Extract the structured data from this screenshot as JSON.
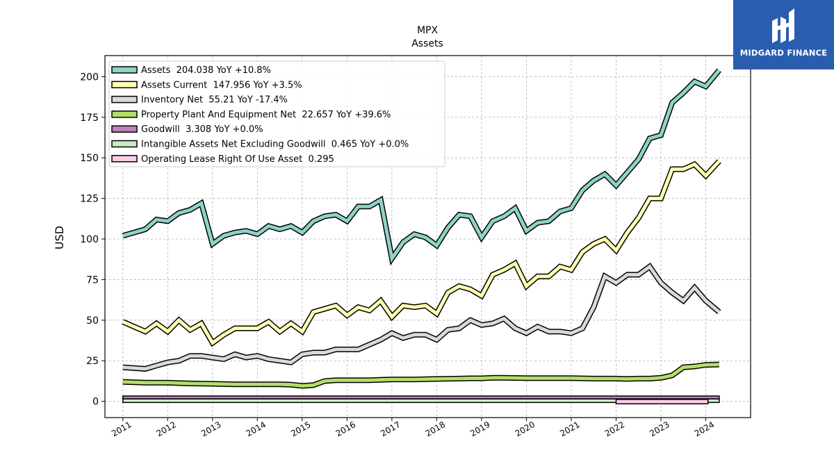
{
  "logo": {
    "text": "MIDGARD FINANCE",
    "background": "#2a5db0"
  },
  "chart_data": {
    "type": "line",
    "title": "MPX",
    "subtitle": "Assets",
    "ylabel": "USD",
    "xlabel": "",
    "xlim": [
      2010.6,
      2025.0
    ],
    "ylim": [
      -10,
      213
    ],
    "yticks": [
      0,
      25,
      50,
      75,
      100,
      125,
      150,
      175,
      200
    ],
    "xticks": [
      "2011",
      "2012",
      "2013",
      "2014",
      "2015",
      "2016",
      "2017",
      "2018",
      "2019",
      "2020",
      "2021",
      "2022",
      "2023",
      "2024"
    ],
    "grid": true,
    "legend_position": "top-left",
    "series": [
      {
        "name": "Assets  204.038 YoY +10.8%",
        "color": "#8dd3c7",
        "points": [
          [
            2011.0,
            102
          ],
          [
            2011.5,
            106
          ],
          [
            2011.75,
            112
          ],
          [
            2012.0,
            111
          ],
          [
            2012.25,
            116
          ],
          [
            2012.5,
            118
          ],
          [
            2012.75,
            122
          ],
          [
            2013.0,
            97
          ],
          [
            2013.25,
            102
          ],
          [
            2013.5,
            104
          ],
          [
            2013.75,
            105
          ],
          [
            2014.0,
            103
          ],
          [
            2014.25,
            108
          ],
          [
            2014.5,
            106
          ],
          [
            2014.75,
            108
          ],
          [
            2015.0,
            104
          ],
          [
            2015.25,
            111
          ],
          [
            2015.5,
            114
          ],
          [
            2015.75,
            115
          ],
          [
            2016.0,
            111
          ],
          [
            2016.25,
            120
          ],
          [
            2016.5,
            120
          ],
          [
            2016.75,
            124
          ],
          [
            2017.0,
            88
          ],
          [
            2017.25,
            98
          ],
          [
            2017.5,
            103
          ],
          [
            2017.75,
            101
          ],
          [
            2018.0,
            96
          ],
          [
            2018.25,
            107
          ],
          [
            2018.5,
            115
          ],
          [
            2018.75,
            114
          ],
          [
            2019.0,
            101
          ],
          [
            2019.25,
            111
          ],
          [
            2019.5,
            114
          ],
          [
            2019.75,
            119
          ],
          [
            2020.0,
            105
          ],
          [
            2020.25,
            110
          ],
          [
            2020.5,
            111
          ],
          [
            2020.75,
            117
          ],
          [
            2021.0,
            119
          ],
          [
            2021.25,
            130
          ],
          [
            2021.5,
            136
          ],
          [
            2021.75,
            140
          ],
          [
            2022.0,
            133
          ],
          [
            2022.25,
            141
          ],
          [
            2022.5,
            149
          ],
          [
            2022.75,
            162
          ],
          [
            2023.0,
            164
          ],
          [
            2023.25,
            184
          ],
          [
            2023.5,
            190
          ],
          [
            2023.75,
            197
          ],
          [
            2024.0,
            194
          ],
          [
            2024.3,
            204
          ]
        ]
      },
      {
        "name": "Assets Current  147.956 YoY +3.5%",
        "color": "#ffffb3",
        "points": [
          [
            2011.0,
            49
          ],
          [
            2011.5,
            43
          ],
          [
            2011.75,
            48
          ],
          [
            2012.0,
            43
          ],
          [
            2012.25,
            50
          ],
          [
            2012.5,
            44
          ],
          [
            2012.75,
            48
          ],
          [
            2013.0,
            36
          ],
          [
            2013.25,
            41
          ],
          [
            2013.5,
            45
          ],
          [
            2013.75,
            45
          ],
          [
            2014.0,
            45
          ],
          [
            2014.25,
            49
          ],
          [
            2014.5,
            43
          ],
          [
            2014.75,
            48
          ],
          [
            2015.0,
            43
          ],
          [
            2015.25,
            55
          ],
          [
            2015.5,
            57
          ],
          [
            2015.75,
            59
          ],
          [
            2016.0,
            53
          ],
          [
            2016.25,
            58
          ],
          [
            2016.5,
            56
          ],
          [
            2016.75,
            62
          ],
          [
            2017.0,
            52
          ],
          [
            2017.25,
            59
          ],
          [
            2017.5,
            58
          ],
          [
            2017.75,
            59
          ],
          [
            2018.0,
            54
          ],
          [
            2018.25,
            67
          ],
          [
            2018.5,
            71
          ],
          [
            2018.75,
            69
          ],
          [
            2019.0,
            65
          ],
          [
            2019.25,
            78
          ],
          [
            2019.5,
            81
          ],
          [
            2019.75,
            85
          ],
          [
            2020.0,
            71
          ],
          [
            2020.25,
            77
          ],
          [
            2020.5,
            77
          ],
          [
            2020.75,
            83
          ],
          [
            2021.0,
            81
          ],
          [
            2021.25,
            92
          ],
          [
            2021.5,
            97
          ],
          [
            2021.75,
            100
          ],
          [
            2022.0,
            93
          ],
          [
            2022.25,
            104
          ],
          [
            2022.5,
            113
          ],
          [
            2022.75,
            125
          ],
          [
            2023.0,
            125
          ],
          [
            2023.25,
            143
          ],
          [
            2023.5,
            143
          ],
          [
            2023.75,
            146
          ],
          [
            2024.0,
            139
          ],
          [
            2024.3,
            148
          ]
        ]
      },
      {
        "name": "Inventory Net  55.21 YoY -17.4%",
        "color": "#d9d9d9",
        "points": [
          [
            2011.0,
            21
          ],
          [
            2011.5,
            20
          ],
          [
            2011.75,
            22
          ],
          [
            2012.0,
            24
          ],
          [
            2012.25,
            25
          ],
          [
            2012.5,
            28
          ],
          [
            2012.75,
            28
          ],
          [
            2013.0,
            27
          ],
          [
            2013.25,
            26
          ],
          [
            2013.5,
            29
          ],
          [
            2013.75,
            27
          ],
          [
            2014.0,
            28
          ],
          [
            2014.25,
            26
          ],
          [
            2014.5,
            25
          ],
          [
            2014.75,
            24
          ],
          [
            2015.0,
            29
          ],
          [
            2015.25,
            30
          ],
          [
            2015.5,
            30
          ],
          [
            2015.75,
            32
          ],
          [
            2016.0,
            32
          ],
          [
            2016.25,
            32
          ],
          [
            2016.5,
            35
          ],
          [
            2016.75,
            38
          ],
          [
            2017.0,
            42
          ],
          [
            2017.25,
            39
          ],
          [
            2017.5,
            41
          ],
          [
            2017.75,
            41
          ],
          [
            2018.0,
            38
          ],
          [
            2018.25,
            44
          ],
          [
            2018.5,
            45
          ],
          [
            2018.75,
            50
          ],
          [
            2019.0,
            47
          ],
          [
            2019.25,
            48
          ],
          [
            2019.5,
            51
          ],
          [
            2019.75,
            45
          ],
          [
            2020.0,
            42
          ],
          [
            2020.25,
            46
          ],
          [
            2020.5,
            43
          ],
          [
            2020.75,
            43
          ],
          [
            2021.0,
            42
          ],
          [
            2021.25,
            45
          ],
          [
            2021.5,
            58
          ],
          [
            2021.75,
            77
          ],
          [
            2022.0,
            73
          ],
          [
            2022.25,
            78
          ],
          [
            2022.5,
            78
          ],
          [
            2022.75,
            83
          ],
          [
            2023.0,
            73
          ],
          [
            2023.25,
            67
          ],
          [
            2023.5,
            62
          ],
          [
            2023.75,
            70
          ],
          [
            2024.0,
            62
          ],
          [
            2024.3,
            55
          ]
        ]
      },
      {
        "name": "Property Plant And Equipment Net  22.657 YoY +39.6%",
        "color": "#b3de69",
        "points": [
          [
            2011.0,
            12
          ],
          [
            2011.5,
            11.5
          ],
          [
            2012.0,
            11.5
          ],
          [
            2012.5,
            11
          ],
          [
            2013.0,
            10.8
          ],
          [
            2013.5,
            10.5
          ],
          [
            2014.0,
            10.5
          ],
          [
            2014.5,
            10.5
          ],
          [
            2014.75,
            10.3
          ],
          [
            2015.0,
            9.5
          ],
          [
            2015.25,
            10
          ],
          [
            2015.5,
            12.5
          ],
          [
            2015.75,
            13
          ],
          [
            2016.0,
            13
          ],
          [
            2016.5,
            13
          ],
          [
            2016.75,
            13.3
          ],
          [
            2017.0,
            13.5
          ],
          [
            2017.5,
            13.5
          ],
          [
            2018.0,
            13.8
          ],
          [
            2018.5,
            14
          ],
          [
            2018.75,
            14.2
          ],
          [
            2019.0,
            14.2
          ],
          [
            2019.25,
            14.5
          ],
          [
            2019.5,
            14.5
          ],
          [
            2020.0,
            14.3
          ],
          [
            2020.5,
            14.3
          ],
          [
            2021.0,
            14.3
          ],
          [
            2021.5,
            14
          ],
          [
            2022.0,
            14
          ],
          [
            2022.25,
            13.8
          ],
          [
            2022.5,
            14
          ],
          [
            2022.75,
            14
          ],
          [
            2023.0,
            14.5
          ],
          [
            2023.25,
            16
          ],
          [
            2023.5,
            21
          ],
          [
            2023.75,
            21.5
          ],
          [
            2024.0,
            22.5
          ],
          [
            2024.3,
            22.7
          ]
        ]
      },
      {
        "name": "Goodwill  3.308 YoY +0.0%",
        "color": "#bc80bd",
        "band": {
          "x0": 2011.0,
          "x1": 2024.3,
          "y0": 1.5,
          "y1": 3.3
        }
      },
      {
        "name": "Intangible Assets Net Excluding Goodwill  0.465 YoY +0.0%",
        "color": "#ccebc5",
        "band": {
          "x0": 2011.0,
          "x1": 2024.3,
          "y0": -0.7,
          "y1": 1.5
        }
      },
      {
        "name": "Operating Lease Right Of Use Asset  0.295",
        "color": "#fccde5",
        "band": {
          "x0": 2022.0,
          "x1": 2024.05,
          "y0": -1.5,
          "y1": 1.2
        }
      }
    ]
  }
}
